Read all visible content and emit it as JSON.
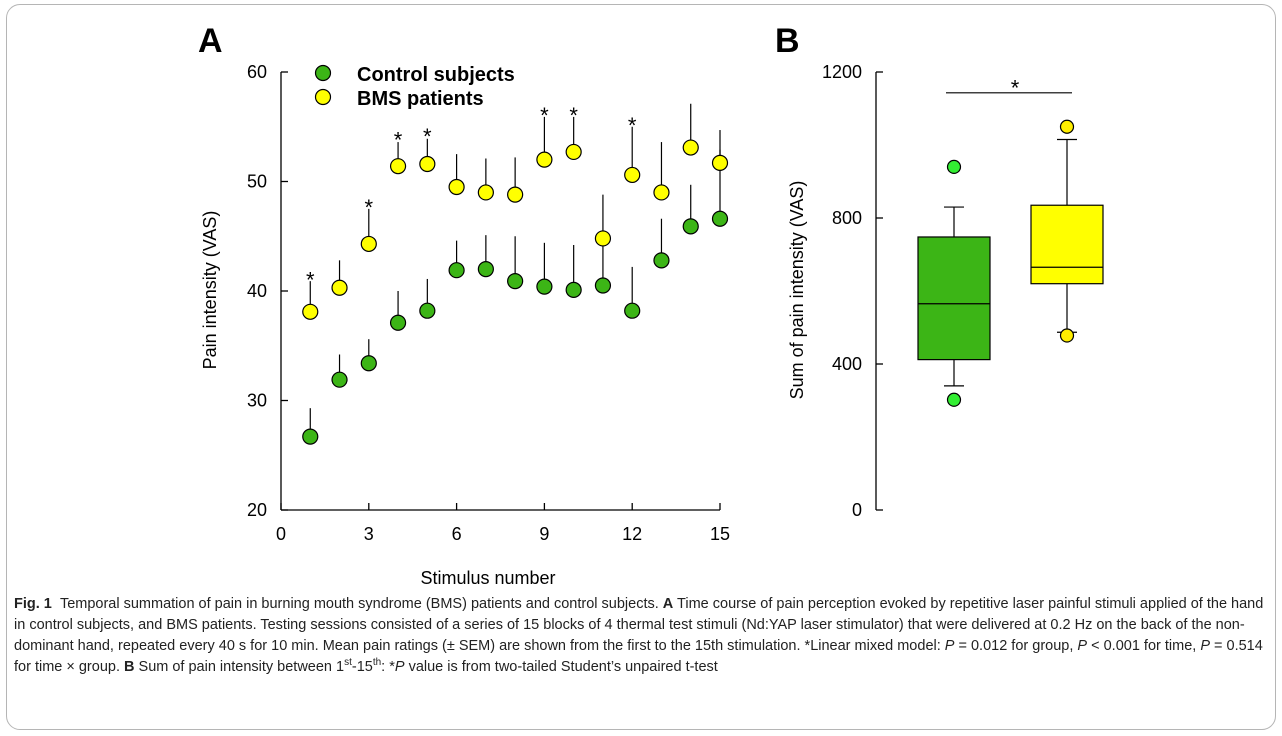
{
  "colors": {
    "control": "#3cb516",
    "bms": "#ffff00",
    "control_outlier": "#33ee33",
    "bms_outlier": "#ffee00",
    "axis": "#000000",
    "caption_text": "#222222",
    "border": "#b5b5b5"
  },
  "chart_data": [
    {
      "panel_label": "A",
      "type": "scatter",
      "xlabel": "Stimulus number",
      "ylabel": "Pain intensity (VAS)",
      "xlim": [
        0,
        15
      ],
      "ylim": [
        20,
        60
      ],
      "xticks": [
        0,
        3,
        6,
        9,
        12,
        15
      ],
      "yticks": [
        20,
        30,
        40,
        50,
        60
      ],
      "grid": false,
      "legend_position": "top-left",
      "series": [
        {
          "name": "Control subjects",
          "color_key": "control",
          "x": [
            1,
            2,
            3,
            4,
            5,
            6,
            7,
            8,
            9,
            10,
            11,
            12,
            13,
            14,
            15
          ],
          "y": [
            26.7,
            31.9,
            33.4,
            37.1,
            38.2,
            41.9,
            42.0,
            40.9,
            40.4,
            40.1,
            40.5,
            38.2,
            42.8,
            45.9,
            46.6
          ],
          "error": [
            2.6,
            2.3,
            2.2,
            2.9,
            2.9,
            2.7,
            3.1,
            4.1,
            4.0,
            4.1,
            4.1,
            4.0,
            3.8,
            3.8,
            6.3
          ]
        },
        {
          "name": "BMS patients",
          "color_key": "bms",
          "x": [
            1,
            2,
            3,
            4,
            5,
            6,
            7,
            8,
            9,
            10,
            11,
            12,
            13,
            14,
            15
          ],
          "y": [
            38.1,
            40.3,
            44.3,
            51.4,
            51.6,
            49.5,
            49.0,
            48.8,
            52.0,
            52.7,
            44.8,
            50.6,
            49.0,
            53.1,
            51.7
          ],
          "error": [
            2.8,
            2.5,
            3.2,
            2.2,
            2.3,
            3.0,
            3.1,
            3.4,
            3.9,
            3.2,
            4.0,
            4.4,
            4.6,
            4.0,
            3.0
          ]
        }
      ],
      "annotations": [
        {
          "text": "*",
          "x": 1,
          "y": 41.6
        },
        {
          "text": "*",
          "x": 3,
          "y": 48.2
        },
        {
          "text": "*",
          "x": 4,
          "y": 54.4
        },
        {
          "text": "*",
          "x": 5,
          "y": 54.7
        },
        {
          "text": "*",
          "x": 9,
          "y": 56.6
        },
        {
          "text": "*",
          "x": 10,
          "y": 56.6
        },
        {
          "text": "*",
          "x": 12,
          "y": 55.7
        }
      ]
    },
    {
      "panel_label": "B",
      "type": "box",
      "ylabel": "Sum of pain intensity (VAS)",
      "ylim": [
        0,
        1200
      ],
      "yticks": [
        0,
        400,
        800,
        1200
      ],
      "grid": false,
      "boxes": [
        {
          "color_key": "control",
          "outlier_color_key": "control_outlier",
          "whisker_low": 340,
          "q1": 412,
          "median": 565,
          "q3": 748,
          "whisker_high": 830,
          "outliers": [
            940,
            302
          ]
        },
        {
          "color_key": "bms",
          "outlier_color_key": "bms_outlier",
          "whisker_low": 487,
          "q1": 620,
          "median": 665,
          "q3": 835,
          "whisker_high": 1015,
          "outliers": [
            1050,
            478
          ]
        }
      ],
      "significance": {
        "text": "*",
        "y": 1180
      }
    }
  ],
  "caption": {
    "fig_label": "Fig. 1",
    "text1": "Temporal summation of pain in burning mouth syndrome (BMS) patients and control subjects. ",
    "a_label": "A",
    "text2": " Time course of pain perception evoked by repetitive laser painful stimuli applied of the hand in control subjects, and BMS patients. Testing sessions consisted of a series of 15 blocks of 4 thermal test stimuli (Nd:YAP laser stimulator) that were delivered at 0.2 Hz on the back of the non-dominant hand, repeated every 40 s for 10 min. Mean pain ratings (± SEM) are shown from the first to the 15th stimulation. *Linear mixed model: ",
    "p_italic": "P",
    "text3": " = 0.012 for group, ",
    "text4": " < 0.001 for time, ",
    "text5": " = 0.514 for time × group. ",
    "b_label": "B",
    "text6": " Sum of pain intensity between 1",
    "sup_st": "st",
    "text7": "-15",
    "sup_th": "th",
    "text8": ": *",
    "text9": " value is from two-tailed Student’s unpaired t-test"
  }
}
